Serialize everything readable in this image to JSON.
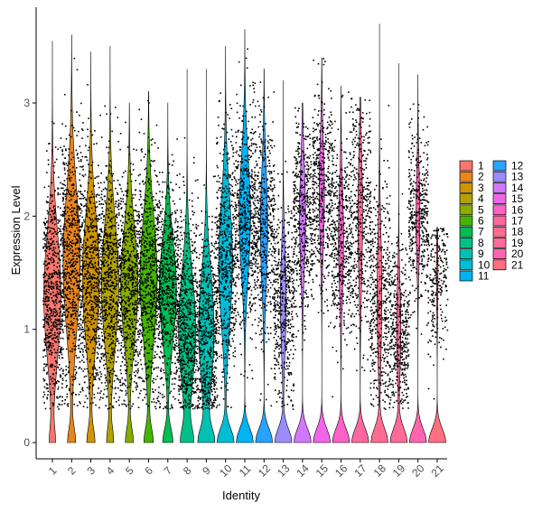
{
  "chart_data": {
    "type": "violin",
    "xlabel": "Identity",
    "ylabel": "Expression Level",
    "ylim": [
      -0.15,
      3.85
    ],
    "yticks": [
      0,
      1,
      2,
      3
    ],
    "grid": false,
    "legend_position": "right",
    "points_shown": true,
    "categories": [
      "1",
      "2",
      "3",
      "4",
      "5",
      "6",
      "7",
      "8",
      "9",
      "10",
      "11",
      "12",
      "13",
      "14",
      "15",
      "16",
      "17",
      "18",
      "19",
      "20",
      "21"
    ],
    "series": [
      {
        "name": "1",
        "color": "#F8766D",
        "zero_fraction": 0.05,
        "mode": 1.3,
        "spread": 0.55,
        "max": 3.55
      },
      {
        "name": "2",
        "color": "#E7851E",
        "zero_fraction": 0.07,
        "mode": 1.6,
        "spread": 0.6,
        "max": 3.6
      },
      {
        "name": "3",
        "color": "#D09400",
        "zero_fraction": 0.07,
        "mode": 1.45,
        "spread": 0.55,
        "max": 3.45
      },
      {
        "name": "4",
        "color": "#B2A100",
        "zero_fraction": 0.06,
        "mode": 1.4,
        "spread": 0.55,
        "max": 3.5
      },
      {
        "name": "5",
        "color": "#89AC00",
        "zero_fraction": 0.07,
        "mode": 1.4,
        "spread": 0.5,
        "max": 3.0
      },
      {
        "name": "6",
        "color": "#45B500",
        "zero_fraction": 0.08,
        "mode": 1.45,
        "spread": 0.55,
        "max": 3.1
      },
      {
        "name": "7",
        "color": "#00BC51",
        "zero_fraction": 0.09,
        "mode": 1.35,
        "spread": 0.45,
        "max": 3.0
      },
      {
        "name": "8",
        "color": "#00C087",
        "zero_fraction": 0.1,
        "mode": 1.0,
        "spread": 0.5,
        "max": 3.3
      },
      {
        "name": "9",
        "color": "#00C0B2",
        "zero_fraction": 0.14,
        "mode": 1.0,
        "spread": 0.5,
        "max": 3.3
      },
      {
        "name": "10",
        "color": "#00BCD6",
        "zero_fraction": 0.17,
        "mode": 1.6,
        "spread": 0.55,
        "max": 3.5
      },
      {
        "name": "11",
        "color": "#00B3F2",
        "zero_fraction": 0.2,
        "mode": 2.0,
        "spread": 0.5,
        "max": 3.65
      },
      {
        "name": "12",
        "color": "#29A3FF",
        "zero_fraction": 0.28,
        "mode": 1.9,
        "spread": 0.5,
        "max": 3.3
      },
      {
        "name": "13",
        "color": "#9C8DFF",
        "zero_fraction": 0.33,
        "mode": 1.25,
        "spread": 0.45,
        "max": 3.2
      },
      {
        "name": "14",
        "color": "#D277FF",
        "zero_fraction": 0.32,
        "mode": 2.0,
        "spread": 0.45,
        "max": 3.0
      },
      {
        "name": "15",
        "color": "#F166E8",
        "zero_fraction": 0.35,
        "mode": 2.2,
        "spread": 0.45,
        "max": 3.4
      },
      {
        "name": "16",
        "color": "#FF61C7",
        "zero_fraction": 0.36,
        "mode": 1.8,
        "spread": 0.45,
        "max": 3.15
      },
      {
        "name": "17",
        "color": "#FF689E",
        "zero_fraction": 0.38,
        "mode": 2.0,
        "spread": 0.55,
        "max": 3.05
      },
      {
        "name": "18",
        "color": "#FF6C91",
        "zero_fraction": 0.37,
        "mode": 1.3,
        "spread": 0.55,
        "max": 3.7
      },
      {
        "name": "19",
        "color": "#FF6A98",
        "zero_fraction": 0.4,
        "mode": 1.0,
        "spread": 0.4,
        "max": 3.35
      },
      {
        "name": "20",
        "color": "#FF65AC",
        "zero_fraction": 0.42,
        "mode": 2.0,
        "spread": 0.4,
        "max": 3.25
      },
      {
        "name": "21",
        "color": "#FF6F7F",
        "zero_fraction": 0.65,
        "mode": 1.5,
        "spread": 0.35,
        "max": 1.9
      }
    ]
  }
}
